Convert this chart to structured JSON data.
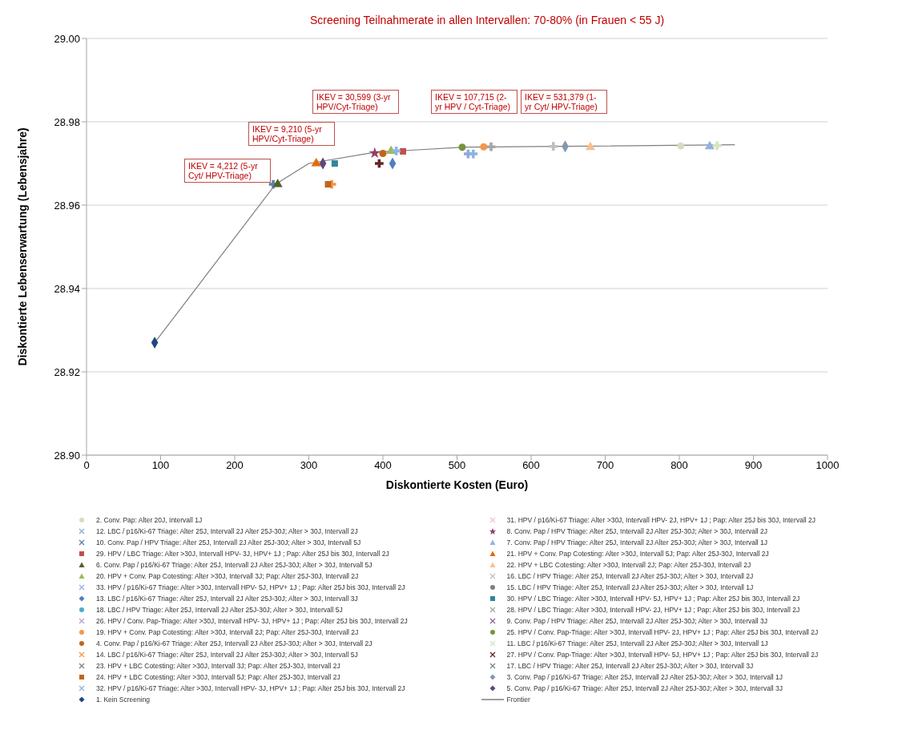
{
  "chart_data": {
    "type": "scatter",
    "title": "Screening Teilnahmerate in allen Intervallen: 70-80% (in Frauen < 55 J)",
    "xlabel": "Diskontierte Kosten (Euro)",
    "ylabel": "Diskontierte Lebenserwartung (Lebensjahre)",
    "xlim": [
      0,
      1000
    ],
    "xticks": [
      0,
      100,
      200,
      300,
      400,
      500,
      600,
      700,
      800,
      900,
      1000
    ],
    "ylim": [
      28.9,
      29.0
    ],
    "yticks": [
      {
        "value": 28.9,
        "label": "28.90"
      },
      {
        "value": 28.92,
        "label": "28.92"
      },
      {
        "value": 28.94,
        "label": "28.94"
      },
      {
        "value": 28.96,
        "label": "28.96"
      },
      {
        "value": 28.98,
        "label": "28.98"
      },
      {
        "value": 29.0,
        "label": "29.00"
      }
    ],
    "grid": "y",
    "legend": "bottom",
    "annotations": [
      "IKEV = 4,212 (5-yr Cyt/ HPV-Triage)",
      "IKEV = 9,210 (5-yr HPV/Cyt-Triage)",
      "IKEV = 30,599 (3-yr HPV/Cyt-Triage)",
      "IKEV = 107,715 (2-yr HPV / Cyt-Triage)",
      "IKEV = 531,379 (1-yr Cyt/ HPV-Triage)"
    ],
    "series": [
      {
        "name": "2. Conv. Pap: Alter 20J, Intervall 1J",
        "color": "#d7dcc0",
        "marker": "circle",
        "x": [
          802
        ],
        "values": [
          28.9742
        ]
      },
      {
        "name": "12. LBC / p16/Ki-67 Triage: Alter 25J, Intervall 2J Alter 25J-30J; Alter > 30J, Intervall 2J",
        "color": "#8ea9db",
        "marker": "cross",
        "x": [
          515
        ],
        "values": [
          28.9723
        ]
      },
      {
        "name": "10. Conv. Pap / HPV Triage: Alter 25J, Intervall 2J Alter 25J-30J; Alter > 30J, Intervall 5J",
        "color": "#5b7fa6",
        "marker": "cross",
        "x": [
          252
        ],
        "values": [
          28.965
        ]
      },
      {
        "name": "29. HPV / LBC Triage: Alter >30J, Intervall  HPV- 3J, HPV+ 1J ; Pap: Alter 25J bis 30J, Intervall 2J",
        "color": "#c0504d",
        "marker": "square",
        "x": [
          427
        ],
        "values": [
          28.9729
        ]
      },
      {
        "name": "6. Conv. Pap / p16/Ki-67 Triage: Alter 25J, Intervall 2J Alter 25J-30J; Alter > 30J, Intervall 5J",
        "color": "#4f6228",
        "marker": "triangle",
        "x": [
          258
        ],
        "values": [
          28.965
        ]
      },
      {
        "name": "20. HPV + Conv. Pap Cotesting: Alter >30J, Intervall 3J; Pap: Alter 25J-30J, Intervall 2J",
        "color": "#9bbb59",
        "marker": "triangle",
        "x": [
          411
        ],
        "values": [
          28.973
        ]
      },
      {
        "name": "33. HPV / p16/Ki-67 Triage: Alter >30J, Intervall  HPV- 5J, HPV+ 1J ; Pap: Alter 25J bis 30J, Intervall 2J",
        "color": "#8db4e2",
        "marker": "cross",
        "x": [
          418
        ],
        "values": [
          28.973
        ]
      },
      {
        "name": "13. LBC / p16/Ki-67 Triage: Alter 25J, Intervall 2J Alter 25J-30J; Alter > 30J, Intervall 3J",
        "color": "#4f81bd",
        "marker": "diamond",
        "x": [
          413
        ],
        "values": [
          28.97
        ]
      },
      {
        "name": "18. LBC / HPV Triage: Alter 25J, Intervall 2J Alter 25J-30J; Alter > 30J, Intervall 5J",
        "color": "#4bacc6",
        "marker": "circle",
        "x": [
          null
        ],
        "values": [
          null
        ]
      },
      {
        "name": "26. HPV / Conv. Pap-Triage: Alter >30J, Intervall  HPV- 3J, HPV+ 1J ; Pap: Alter 25J bis 30J, Intervall 2J",
        "color": "#b3a2c7",
        "marker": "cross",
        "x": [
          null
        ],
        "values": [
          null
        ]
      },
      {
        "name": "19. HPV + Conv. Pap Cotesting: Alter >30J, Intervall 2J; Pap: Alter 25J-30J, Intervall 2J",
        "color": "#f79646",
        "marker": "circle",
        "x": [
          536
        ],
        "values": [
          28.974
        ]
      },
      {
        "name": "4. Conv. Pap / p16/Ki-67 Triage: Alter 25J, Intervall 2J Alter 25J-30J; Alter > 30J, Intervall 2J",
        "color": "#c0661c",
        "marker": "circle",
        "x": [
          400
        ],
        "values": [
          28.9724
        ]
      },
      {
        "name": "14. LBC / p16/Ki-67 Triage: Alter 25J, Intervall 2J Alter 25J-30J; Alter > 30J, Intervall 5J",
        "color": "#f79646",
        "marker": "cross",
        "x": [
          331
        ],
        "values": [
          28.965
        ]
      },
      {
        "name": "23. HPV + LBC Cotesting: Alter >30J, Intervall 3J; Pap: Alter 25J-30J, Intervall 2J",
        "color": "#7f7f7f",
        "marker": "cross",
        "x": [
          null
        ],
        "values": [
          null
        ]
      },
      {
        "name": "24. HPV + LBC Cotesting: Alter >30J, Intervall 5J; Pap: Alter 25J-30J, Intervall 2J",
        "color": "#c0661c",
        "marker": "square",
        "x": [
          326
        ],
        "values": [
          28.965
        ]
      },
      {
        "name": "32. HPV / p16/Ki-67 Triage: Alter >30J, Intervall  HPV- 3J, HPV+ 1J ; Pap: Alter 25J bis 30J, Intervall 2J",
        "color": "#8db4e2",
        "marker": "cross",
        "x": [
          522
        ],
        "values": [
          28.9723
        ]
      },
      {
        "name": "1. Kein Screening",
        "color": "#1f497d",
        "marker": "diamond",
        "x": [
          92
        ],
        "values": [
          28.927
        ]
      },
      {
        "name": "31. HPV / p16/Ki-67 Triage: Alter >30J, Intervall  HPV- 2J, HPV+ 1J ; Pap: Alter 25J bis 30J, Intervall 2J",
        "color": "#f2c4c4",
        "marker": "cross",
        "x": [
          null
        ],
        "values": [
          null
        ]
      },
      {
        "name": "8. Conv. Pap / HPV Triage: Alter 25J, Intervall 2J Alter 25J-30J; Alter > 30J, Intervall 2J",
        "color": "#953f6a",
        "marker": "star",
        "x": [
          389
        ],
        "values": [
          28.9725
        ]
      },
      {
        "name": "7. Conv. Pap / HPV Triage: Alter 25J, Intervall 2J Alter 25J-30J; Alter > 30J, Intervall 1J",
        "color": "#8db4e2",
        "marker": "triangle",
        "x": [
          841
        ],
        "values": [
          28.9741
        ]
      },
      {
        "name": "21. HPV + Conv. Pap Cotesting: Alter >30J, Intervall 5J; Pap: Alter 25J-30J, Intervall 2J",
        "color": "#e46c0a",
        "marker": "triangle",
        "x": [
          310
        ],
        "values": [
          28.97
        ]
      },
      {
        "name": "22. HPV + LBC Cotesting: Alter >30J, Intervall 2J; Pap: Alter 25J-30J, Intervall 2J",
        "color": "#fabf8f",
        "marker": "triangle",
        "x": [
          680
        ],
        "values": [
          28.9739
        ]
      },
      {
        "name": "16. LBC / HPV Triage: Alter 25J, Intervall 2J Alter 25J-30J; Alter > 30J, Intervall 2J",
        "color": "#bfbfbf",
        "marker": "cross",
        "x": [
          630
        ],
        "values": [
          28.9741
        ]
      },
      {
        "name": "15. LBC / HPV Triage: Alter 25J, Intervall 2J Alter 25J-30J; Alter > 30J, Intervall 1J",
        "color": "#7f7f7f",
        "marker": "circle",
        "x": [
          null
        ],
        "values": [
          null
        ]
      },
      {
        "name": "30. HPV / LBC Triage: Alter >30J, Intervall  HPV- 5J, HPV+ 1J ; Pap: Alter 25J bis 30J, Intervall 2J",
        "color": "#31859c",
        "marker": "square",
        "x": [
          335
        ],
        "values": [
          28.97
        ]
      },
      {
        "name": "28. HPV / LBC Triage: Alter >30J, Intervall  HPV- 2J, HPV+ 1J ; Pap: Alter 25J bis 30J, Intervall 2J",
        "color": "#a6a6a6",
        "marker": "cross",
        "x": [
          546
        ],
        "values": [
          28.974
        ]
      },
      {
        "name": "9. Conv. Pap / HPV Triage: Alter 25J, Intervall 2J Alter 25J-30J; Alter > 30J, Intervall 3J",
        "color": "#8064a2",
        "marker": "cross",
        "x": [
          null
        ],
        "values": [
          null
        ]
      },
      {
        "name": "25. HPV / Conv. Pap-Triage: Alter >30J, Intervall  HPV- 2J, HPV+ 1J ; Pap: Alter 25J bis 30J, Intervall 2J",
        "color": "#77933c",
        "marker": "circle",
        "x": [
          507
        ],
        "values": [
          28.9739
        ]
      },
      {
        "name": "11. LBC / p16/Ki-67 Triage: Alter 25J, Intervall 2J Alter 25J-30J; Alter > 30J, Intervall 1J",
        "color": "#d8e4bc",
        "marker": "cross",
        "x": [
          851
        ],
        "values": [
          28.9743
        ]
      },
      {
        "name": "27. HPV / Conv. Pap-Triage: Alter >30J, Intervall  HPV- 5J, HPV+ 1J ; Pap: Alter 25J bis 30J, Intervall 2J",
        "color": "#632523",
        "marker": "cross",
        "x": [
          395
        ],
        "values": [
          28.97
        ]
      },
      {
        "name": "17. LBC / HPV Triage: Alter 25J, Intervall 2J Alter 25J-30J; Alter > 30J, Intervall 3J",
        "color": "#7f7f7f",
        "marker": "cross",
        "x": [
          null
        ],
        "values": [
          null
        ]
      },
      {
        "name": "3. Conv. Pap / p16/Ki-67 Triage: Alter 25J, Intervall 2J Alter 25J-30J; Alter > 30J, Intervall 1J",
        "color": "#8497b0",
        "marker": "diamond",
        "x": [
          646
        ],
        "values": [
          28.9741
        ]
      },
      {
        "name": "5. Conv. Pap / p16/Ki-67 Triage: Alter 25J, Intervall 2J Alter 25J-30J; Alter > 30J, Intervall 3J",
        "color": "#5f497a",
        "marker": "diamond",
        "x": [
          319
        ],
        "values": [
          28.97
        ]
      },
      {
        "name": "Frontier",
        "type": "line",
        "color": "#7f7f7f",
        "marker": "none",
        "x": [
          92,
          255,
          300,
          390,
          510,
          640,
          875
        ],
        "values": [
          28.927,
          28.965,
          28.97,
          28.9727,
          28.9739,
          28.9741,
          28.9745
        ]
      }
    ]
  }
}
